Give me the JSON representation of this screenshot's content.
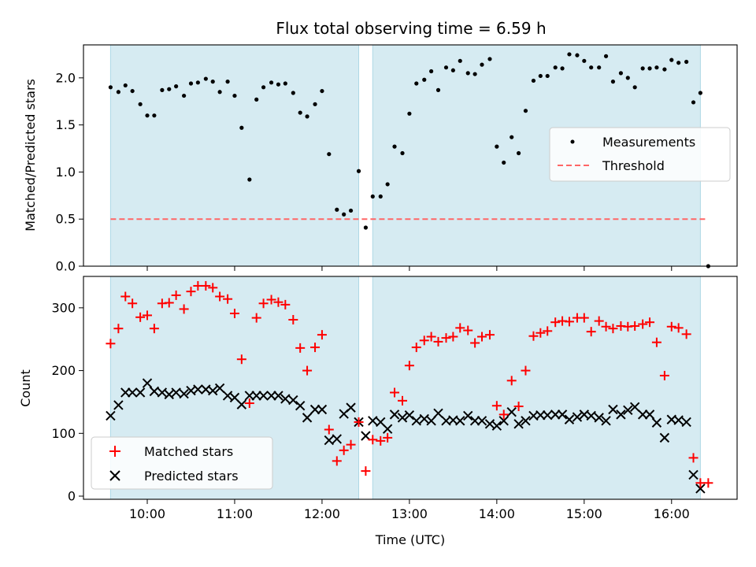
{
  "figure": {
    "title": "Flux total observing time = 6.59 h"
  },
  "chart_data": [
    {
      "type": "scatter",
      "panel": "top",
      "title": "Flux total observing time = 6.59 h",
      "xlabel": "",
      "ylabel": "Matched/Predicted stars",
      "xlim": [
        9.27,
        16.75
      ],
      "ylim": [
        0.0,
        2.35
      ],
      "yticks": [
        0.0,
        0.5,
        1.0,
        1.5,
        2.0
      ],
      "ytick_labels": [
        "0.0",
        "0.5",
        "1.0",
        "1.5",
        "2.0"
      ],
      "xticks": [
        10,
        11,
        12,
        13,
        14,
        15,
        16
      ],
      "shaded_intervals": [
        [
          9.58,
          12.42
        ],
        [
          12.58,
          16.33
        ]
      ],
      "shade_color": "#add8e6",
      "legend": {
        "placement": "center-right",
        "entries": [
          "Measurements",
          "Threshold"
        ]
      },
      "threshold": {
        "name": "Threshold",
        "y": 0.5,
        "x_range": [
          9.58,
          16.42
        ],
        "color": "#ff6666",
        "style": "dashed"
      },
      "series": [
        {
          "name": "Measurements",
          "color": "#000000",
          "points": [
            [
              9.58,
              1.9
            ],
            [
              9.67,
              1.85
            ],
            [
              9.75,
              1.92
            ],
            [
              9.83,
              1.86
            ],
            [
              9.92,
              1.72
            ],
            [
              10.0,
              1.6
            ],
            [
              10.08,
              1.6
            ],
            [
              10.17,
              1.87
            ],
            [
              10.25,
              1.88
            ],
            [
              10.33,
              1.91
            ],
            [
              10.42,
              1.81
            ],
            [
              10.5,
              1.94
            ],
            [
              10.58,
              1.95
            ],
            [
              10.67,
              1.99
            ],
            [
              10.75,
              1.96
            ],
            [
              10.83,
              1.85
            ],
            [
              10.92,
              1.96
            ],
            [
              11.0,
              1.81
            ],
            [
              11.08,
              1.47
            ],
            [
              11.17,
              0.92
            ],
            [
              11.25,
              1.77
            ],
            [
              11.33,
              1.9
            ],
            [
              11.42,
              1.95
            ],
            [
              11.5,
              1.93
            ],
            [
              11.58,
              1.94
            ],
            [
              11.67,
              1.84
            ],
            [
              11.75,
              1.63
            ],
            [
              11.83,
              1.59
            ],
            [
              11.92,
              1.72
            ],
            [
              12.0,
              1.86
            ],
            [
              12.08,
              1.19
            ],
            [
              12.17,
              0.6
            ],
            [
              12.25,
              0.55
            ],
            [
              12.33,
              0.59
            ],
            [
              12.42,
              1.01
            ],
            [
              12.5,
              0.41
            ],
            [
              12.58,
              0.74
            ],
            [
              12.67,
              0.74
            ],
            [
              12.75,
              0.87
            ],
            [
              12.83,
              1.27
            ],
            [
              12.92,
              1.2
            ],
            [
              13.0,
              1.62
            ],
            [
              13.08,
              1.94
            ],
            [
              13.17,
              1.98
            ],
            [
              13.25,
              2.07
            ],
            [
              13.33,
              1.87
            ],
            [
              13.42,
              2.11
            ],
            [
              13.5,
              2.08
            ],
            [
              13.58,
              2.18
            ],
            [
              13.67,
              2.05
            ],
            [
              13.75,
              2.04
            ],
            [
              13.83,
              2.14
            ],
            [
              13.92,
              2.2
            ],
            [
              14.0,
              1.27
            ],
            [
              14.08,
              1.1
            ],
            [
              14.17,
              1.37
            ],
            [
              14.25,
              1.2
            ],
            [
              14.33,
              1.65
            ],
            [
              14.42,
              1.97
            ],
            [
              14.5,
              2.02
            ],
            [
              14.58,
              2.02
            ],
            [
              14.67,
              2.11
            ],
            [
              14.75,
              2.1
            ],
            [
              14.83,
              2.25
            ],
            [
              14.92,
              2.24
            ],
            [
              15.0,
              2.18
            ],
            [
              15.08,
              2.11
            ],
            [
              15.17,
              2.11
            ],
            [
              15.25,
              2.23
            ],
            [
              15.33,
              1.96
            ],
            [
              15.42,
              2.05
            ],
            [
              15.5,
              2.0
            ],
            [
              15.58,
              1.9
            ],
            [
              15.67,
              2.1
            ],
            [
              15.75,
              2.1
            ],
            [
              15.83,
              2.11
            ],
            [
              15.92,
              2.09
            ],
            [
              16.0,
              2.19
            ],
            [
              16.08,
              2.16
            ],
            [
              16.17,
              2.17
            ],
            [
              16.25,
              1.74
            ],
            [
              16.33,
              1.84
            ],
            [
              16.42,
              0.0
            ]
          ]
        }
      ]
    },
    {
      "type": "scatter",
      "panel": "bottom",
      "xlabel": "Time (UTC)",
      "ylabel": "Count",
      "xlim": [
        9.27,
        16.75
      ],
      "ylim": [
        -5,
        350
      ],
      "yticks": [
        0,
        100,
        200,
        300
      ],
      "ytick_labels": [
        "0",
        "100",
        "200",
        "300"
      ],
      "xticks": [
        10,
        11,
        12,
        13,
        14,
        15,
        16
      ],
      "xtick_labels": [
        "10:00",
        "11:00",
        "12:00",
        "13:00",
        "14:00",
        "15:00",
        "16:00"
      ],
      "shaded_intervals": [
        [
          9.58,
          12.42
        ],
        [
          12.58,
          16.33
        ]
      ],
      "shade_color": "#add8e6",
      "legend": {
        "placement": "lower-left",
        "entries": [
          "Matched stars",
          "Predicted stars"
        ]
      },
      "series": [
        {
          "name": "Matched stars",
          "marker": "plus",
          "color": "#ff0000",
          "points": [
            [
              9.58,
              243
            ],
            [
              9.67,
              267
            ],
            [
              9.75,
              318
            ],
            [
              9.83,
              307
            ],
            [
              9.92,
              285
            ],
            [
              10.0,
              288
            ],
            [
              10.08,
              267
            ],
            [
              10.17,
              307
            ],
            [
              10.25,
              308
            ],
            [
              10.33,
              320
            ],
            [
              10.42,
              298
            ],
            [
              10.5,
              326
            ],
            [
              10.58,
              335
            ],
            [
              10.67,
              335
            ],
            [
              10.75,
              332
            ],
            [
              10.83,
              318
            ],
            [
              10.92,
              314
            ],
            [
              11.0,
              291
            ],
            [
              11.08,
              218
            ],
            [
              11.17,
              148
            ],
            [
              11.25,
              284
            ],
            [
              11.33,
              307
            ],
            [
              11.42,
              313
            ],
            [
              11.5,
              309
            ],
            [
              11.58,
              305
            ],
            [
              11.67,
              281
            ],
            [
              11.75,
              236
            ],
            [
              11.83,
              200
            ],
            [
              11.92,
              237
            ],
            [
              12.0,
              257
            ],
            [
              12.08,
              106
            ],
            [
              12.17,
              56
            ],
            [
              12.25,
              73
            ],
            [
              12.33,
              82
            ],
            [
              12.42,
              118
            ],
            [
              12.5,
              40
            ],
            [
              12.58,
              90
            ],
            [
              12.67,
              88
            ],
            [
              12.75,
              93
            ],
            [
              12.83,
              165
            ],
            [
              12.92,
              152
            ],
            [
              13.0,
              208
            ],
            [
              13.08,
              237
            ],
            [
              13.17,
              248
            ],
            [
              13.25,
              254
            ],
            [
              13.33,
              246
            ],
            [
              13.42,
              252
            ],
            [
              13.5,
              254
            ],
            [
              13.58,
              268
            ],
            [
              13.67,
              264
            ],
            [
              13.75,
              244
            ],
            [
              13.83,
              254
            ],
            [
              13.92,
              257
            ],
            [
              14.0,
              144
            ],
            [
              14.08,
              130
            ],
            [
              14.17,
              184
            ],
            [
              14.25,
              143
            ],
            [
              14.33,
              200
            ],
            [
              14.42,
              255
            ],
            [
              14.5,
              260
            ],
            [
              14.58,
              263
            ],
            [
              14.67,
              277
            ],
            [
              14.75,
              279
            ],
            [
              14.83,
              278
            ],
            [
              14.92,
              284
            ],
            [
              15.0,
              284
            ],
            [
              15.08,
              262
            ],
            [
              15.17,
              279
            ],
            [
              15.25,
              270
            ],
            [
              15.33,
              267
            ],
            [
              15.42,
              271
            ],
            [
              15.5,
              270
            ],
            [
              15.58,
              271
            ],
            [
              15.67,
              274
            ],
            [
              15.75,
              277
            ],
            [
              15.83,
              245
            ],
            [
              15.92,
              192
            ],
            [
              16.0,
              270
            ],
            [
              16.08,
              268
            ],
            [
              16.17,
              258
            ],
            [
              16.25,
              61
            ],
            [
              16.33,
              21
            ],
            [
              16.42,
              21
            ]
          ]
        },
        {
          "name": "Predicted stars",
          "marker": "x",
          "color": "#000000",
          "points": [
            [
              9.58,
              128
            ],
            [
              9.67,
              145
            ],
            [
              9.75,
              165
            ],
            [
              9.83,
              165
            ],
            [
              9.92,
              165
            ],
            [
              10.0,
              180
            ],
            [
              10.08,
              167
            ],
            [
              10.17,
              165
            ],
            [
              10.25,
              162
            ],
            [
              10.33,
              165
            ],
            [
              10.42,
              163
            ],
            [
              10.5,
              168
            ],
            [
              10.58,
              170
            ],
            [
              10.67,
              170
            ],
            [
              10.75,
              168
            ],
            [
              10.83,
              172
            ],
            [
              10.92,
              160
            ],
            [
              11.0,
              157
            ],
            [
              11.08,
              146
            ],
            [
              11.17,
              160
            ],
            [
              11.25,
              160
            ],
            [
              11.33,
              160
            ],
            [
              11.42,
              160
            ],
            [
              11.5,
              160
            ],
            [
              11.58,
              155
            ],
            [
              11.67,
              153
            ],
            [
              11.75,
              144
            ],
            [
              11.83,
              125
            ],
            [
              11.92,
              138
            ],
            [
              12.0,
              138
            ],
            [
              12.08,
              89
            ],
            [
              12.17,
              91
            ],
            [
              12.25,
              131
            ],
            [
              12.33,
              141
            ],
            [
              12.42,
              118
            ],
            [
              12.5,
              96
            ],
            [
              12.58,
              120
            ],
            [
              12.67,
              118
            ],
            [
              12.75,
              107
            ],
            [
              12.83,
              130
            ],
            [
              12.92,
              125
            ],
            [
              13.0,
              129
            ],
            [
              13.08,
              120
            ],
            [
              13.17,
              123
            ],
            [
              13.25,
              120
            ],
            [
              13.33,
              132
            ],
            [
              13.42,
              120
            ],
            [
              13.5,
              121
            ],
            [
              13.58,
              120
            ],
            [
              13.67,
              128
            ],
            [
              13.75,
              120
            ],
            [
              13.83,
              120
            ],
            [
              13.92,
              115
            ],
            [
              14.0,
              112
            ],
            [
              14.08,
              120
            ],
            [
              14.17,
              134
            ],
            [
              14.25,
              115
            ],
            [
              14.33,
              120
            ],
            [
              14.42,
              128
            ],
            [
              14.5,
              129
            ],
            [
              14.58,
              129
            ],
            [
              14.67,
              130
            ],
            [
              14.75,
              130
            ],
            [
              14.83,
              122
            ],
            [
              14.92,
              126
            ],
            [
              15.0,
              130
            ],
            [
              15.08,
              128
            ],
            [
              15.17,
              125
            ],
            [
              15.25,
              120
            ],
            [
              15.33,
              138
            ],
            [
              15.42,
              130
            ],
            [
              15.5,
              137
            ],
            [
              15.58,
              142
            ],
            [
              15.67,
              130
            ],
            [
              15.75,
              130
            ],
            [
              15.83,
              117
            ],
            [
              15.92,
              93
            ],
            [
              16.0,
              122
            ],
            [
              16.08,
              121
            ],
            [
              16.17,
              118
            ],
            [
              16.25,
              34
            ],
            [
              16.33,
              12
            ]
          ]
        }
      ]
    }
  ]
}
